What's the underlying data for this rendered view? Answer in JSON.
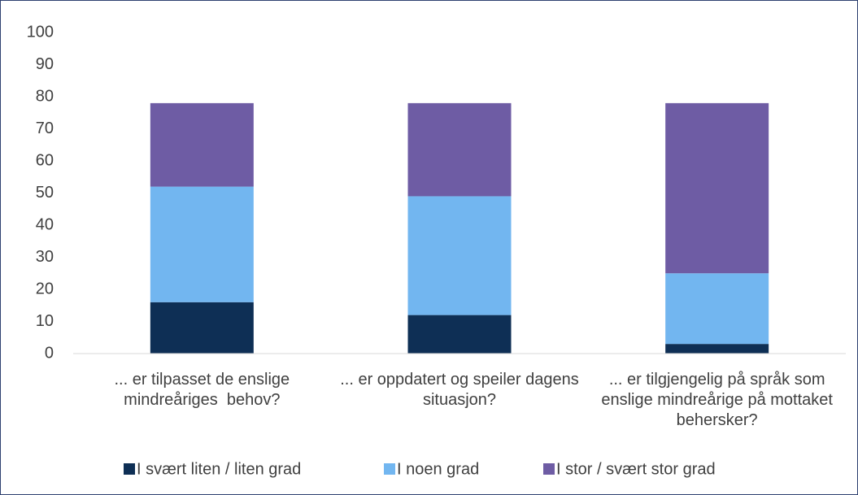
{
  "chart_data": {
    "type": "stacked_bar",
    "categories": [
      "... er tilpasset de enslige mindreåriges  behov?",
      "... er oppdatert og speiler dagens situasjon?",
      "... er tilgjengelig på språk som enslige mindreårige på mottaket behersker?"
    ],
    "series": [
      {
        "name": "I svært liten / liten grad",
        "color": "#0e2f55",
        "values": [
          16,
          12,
          3
        ]
      },
      {
        "name": "I noen grad",
        "color": "#72b6f0",
        "values": [
          36,
          37,
          22
        ]
      },
      {
        "name": "I stor / svært stor grad",
        "color": "#6e5ca4",
        "values": [
          26,
          29,
          53
        ]
      }
    ],
    "ylim": [
      0,
      100
    ],
    "yticks": [
      0,
      10,
      20,
      30,
      40,
      50,
      60,
      70,
      80,
      90,
      100
    ],
    "grid": false,
    "legend": "bottom"
  }
}
